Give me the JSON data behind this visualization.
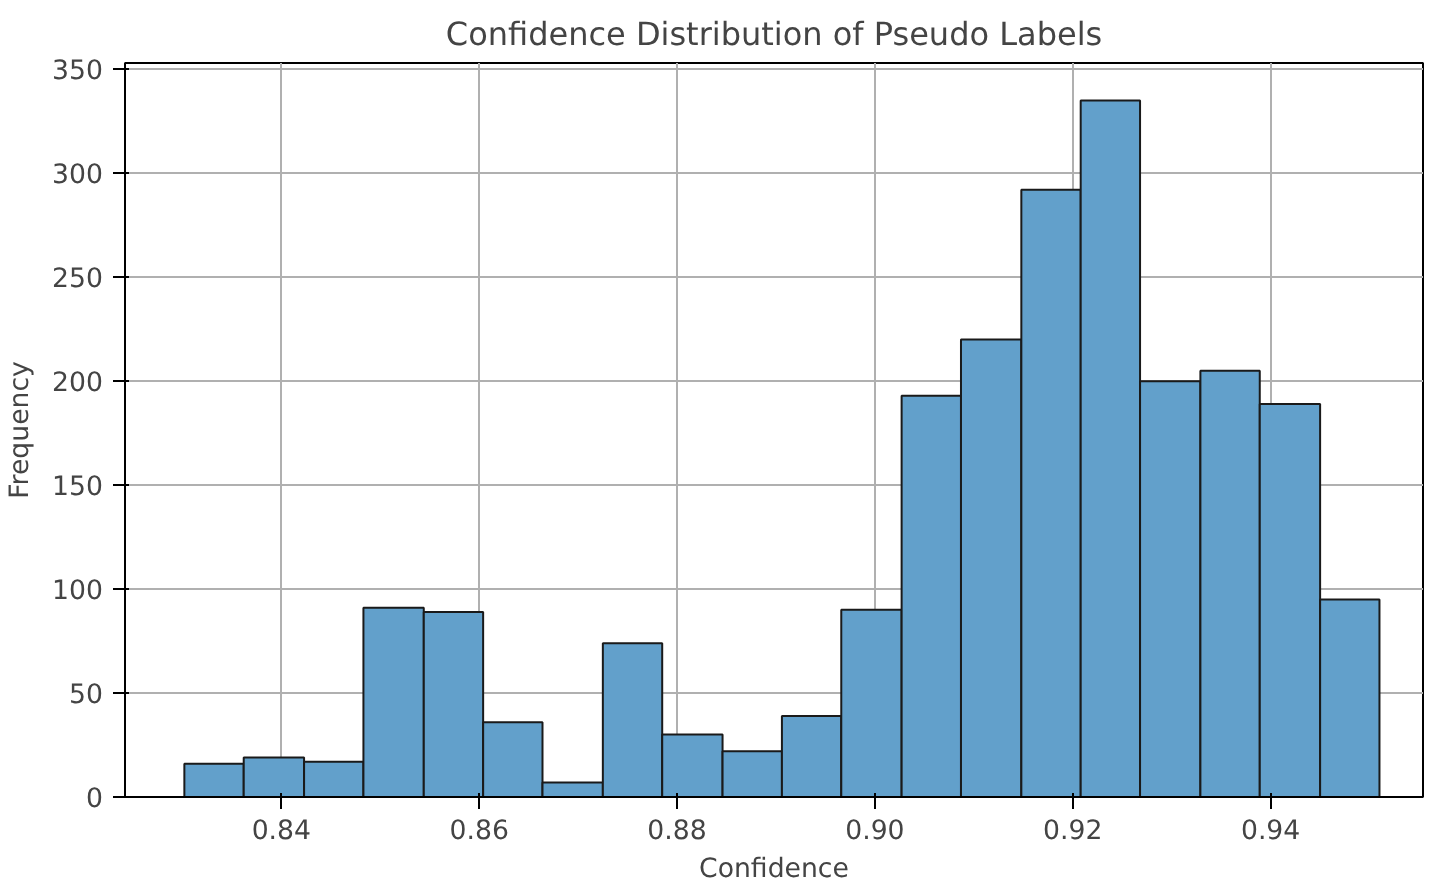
{
  "chart_data": {
    "type": "histogram",
    "title": "Confidence Distribution of Pseudo Labels",
    "xlabel": "Confidence",
    "ylabel": "Frequency",
    "bins": [
      0.8302,
      0.8362,
      0.8423,
      0.8483,
      0.8544,
      0.8604,
      0.8664,
      0.8725,
      0.8785,
      0.8846,
      0.8906,
      0.8966,
      0.9027,
      0.9087,
      0.9148,
      0.9208,
      0.9268,
      0.9329,
      0.9389,
      0.945,
      0.951
    ],
    "values": [
      16,
      19,
      17,
      91,
      89,
      36,
      7,
      74,
      30,
      22,
      39,
      90,
      193,
      220,
      292,
      335,
      200,
      205,
      189,
      95
    ],
    "color": "#62a0cb",
    "xlim": [
      0.8242,
      0.9554
    ],
    "xticks": [
      {
        "value": 0.84,
        "label": "0.84"
      },
      {
        "value": 0.86,
        "label": "0.86"
      },
      {
        "value": 0.88,
        "label": "0.88"
      },
      {
        "value": 0.9,
        "label": "0.90"
      },
      {
        "value": 0.92,
        "label": "0.92"
      },
      {
        "value": 0.94,
        "label": "0.94"
      }
    ],
    "ylim": [
      0,
      353
    ],
    "yticks": [
      0,
      50,
      100,
      150,
      200,
      250,
      300,
      350
    ],
    "grid": true
  }
}
